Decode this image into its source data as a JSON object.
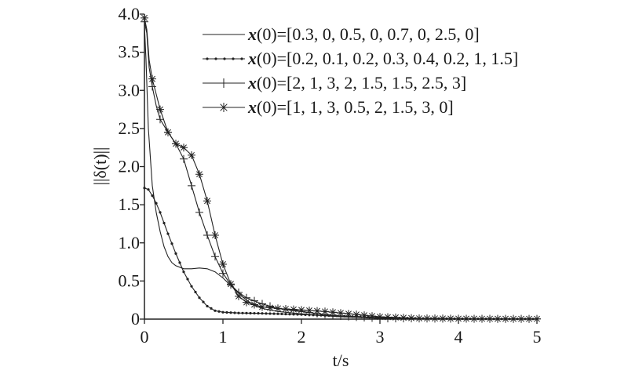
{
  "chart_data": {
    "type": "line",
    "xlabel": "t/s",
    "ylabel": "||δ(t)||",
    "xlim": [
      0,
      5
    ],
    "ylim": [
      0,
      4.0
    ],
    "x_ticks": [
      "0",
      "1",
      "2",
      "3",
      "4",
      "5"
    ],
    "y_ticks": [
      "0",
      "0.5",
      "1.0",
      "1.5",
      "2.0",
      "2.5",
      "3.0",
      "3.5",
      "4.0"
    ],
    "grid": false,
    "legend_position": "top-right",
    "series": [
      {
        "name": "x(0)=[0.3, 0, 0.5, 0, 0.7, 0, 2.5, 0]",
        "marker": "none",
        "x": [
          0,
          0.02,
          0.05,
          0.1,
          0.15,
          0.2,
          0.25,
          0.3,
          0.35,
          0.4,
          0.5,
          0.6,
          0.7,
          0.8,
          0.9,
          1.0,
          1.1,
          1.2,
          1.3,
          1.4,
          1.5,
          1.7,
          2.0,
          2.2,
          2.5,
          2.8,
          3.0,
          3.5,
          4.0,
          4.5,
          5.0
        ],
        "y": [
          3.85,
          3.4,
          2.5,
          1.75,
          1.4,
          1.15,
          0.95,
          0.82,
          0.74,
          0.7,
          0.66,
          0.66,
          0.67,
          0.66,
          0.62,
          0.54,
          0.44,
          0.34,
          0.25,
          0.18,
          0.14,
          0.1,
          0.07,
          0.05,
          0.03,
          0.02,
          0.01,
          0.01,
          0.005,
          0.003,
          0.002
        ]
      },
      {
        "name": "x(0)=[0.2, 0.1, 0.2, 0.3, 0.4, 0.2, 1, 1.5]",
        "marker": "dot",
        "x": [
          0,
          0.05,
          0.1,
          0.15,
          0.2,
          0.25,
          0.3,
          0.4,
          0.5,
          0.6,
          0.7,
          0.8,
          0.9,
          1.0,
          1.1,
          1.2,
          1.5,
          2.0,
          2.5,
          3.0,
          3.5,
          4.0,
          4.5,
          5.0
        ],
        "y": [
          1.72,
          1.7,
          1.62,
          1.52,
          1.4,
          1.26,
          1.12,
          0.86,
          0.62,
          0.43,
          0.28,
          0.17,
          0.11,
          0.09,
          0.085,
          0.08,
          0.075,
          0.06,
          0.04,
          0.02,
          0.01,
          0.005,
          0.003,
          0.002
        ]
      },
      {
        "name": "x(0)=[2, 1, 3, 2, 1.5, 1.5, 2.5, 3]",
        "marker": "plus",
        "x": [
          0,
          0.03,
          0.06,
          0.1,
          0.15,
          0.2,
          0.3,
          0.4,
          0.5,
          0.6,
          0.7,
          0.8,
          0.9,
          1.0,
          1.1,
          1.2,
          1.3,
          1.5,
          1.7,
          2.0,
          2.3,
          2.5,
          2.8,
          3.0,
          3.5,
          4.0,
          4.5,
          5.0
        ],
        "y": [
          3.9,
          3.75,
          3.3,
          3.05,
          2.8,
          2.62,
          2.45,
          2.3,
          2.1,
          1.75,
          1.4,
          1.1,
          0.82,
          0.6,
          0.45,
          0.35,
          0.28,
          0.2,
          0.14,
          0.1,
          0.06,
          0.04,
          0.02,
          0.01,
          0.008,
          0.005,
          0.003,
          0.002
        ]
      },
      {
        "name": "x(0)=[1, 1, 3, 0.5, 2, 1.5, 3, 0]",
        "marker": "asterisk",
        "x": [
          0,
          0.03,
          0.06,
          0.1,
          0.15,
          0.2,
          0.3,
          0.4,
          0.5,
          0.6,
          0.7,
          0.8,
          0.9,
          1.0,
          1.1,
          1.2,
          1.3,
          1.5,
          1.7,
          2.0,
          2.3,
          2.5,
          2.8,
          3.0,
          3.5,
          4.0,
          4.5,
          5.0
        ],
        "y": [
          3.95,
          3.8,
          3.4,
          3.15,
          2.95,
          2.75,
          2.45,
          2.3,
          2.25,
          2.15,
          1.9,
          1.55,
          1.1,
          0.72,
          0.46,
          0.3,
          0.22,
          0.16,
          0.14,
          0.12,
          0.1,
          0.08,
          0.05,
          0.03,
          0.01,
          0.006,
          0.004,
          0.003
        ]
      }
    ]
  }
}
